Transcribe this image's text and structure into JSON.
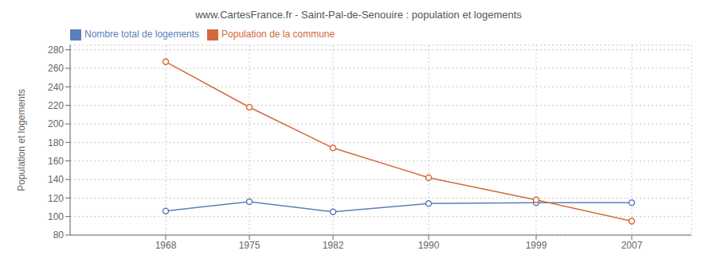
{
  "chart_data": {
    "type": "line",
    "title": "www.CartesFrance.fr - Saint-Pal-de-Senouire : population et logements",
    "ylabel": "Population et logements",
    "x": [
      1968,
      1975,
      1982,
      1990,
      1999,
      2007
    ],
    "series": [
      {
        "name": "Nombre total de logements",
        "color": "#5b7fba",
        "marker": "circle",
        "values": [
          106,
          116,
          105,
          114,
          115,
          115
        ]
      },
      {
        "name": "Population de la commune",
        "color": "#d4693a",
        "marker": "circle",
        "values": [
          267,
          218,
          174,
          142,
          118,
          95
        ]
      }
    ],
    "xlim": [
      1960,
      2012
    ],
    "xticks": [
      1968,
      1975,
      1982,
      1990,
      1999,
      2007
    ],
    "ylim": [
      80,
      285
    ],
    "yticks": [
      80,
      100,
      120,
      140,
      160,
      180,
      200,
      220,
      240,
      260,
      280
    ],
    "grid": true,
    "legend": "upper left"
  }
}
